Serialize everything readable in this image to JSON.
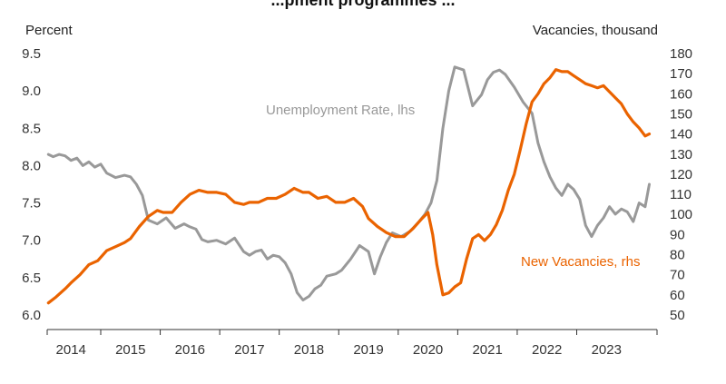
{
  "chart_data": {
    "type": "line",
    "title": "...pment programmes ...",
    "left_axis": {
      "label": "Percent",
      "ylim": [
        6.0,
        9.5
      ],
      "ticks": [
        "6.0",
        "6.5",
        "7.0",
        "7.5",
        "8.0",
        "8.5",
        "9.0",
        "9.5"
      ],
      "tick_values": [
        6.0,
        6.5,
        7.0,
        7.5,
        8.0,
        8.5,
        9.0,
        9.5
      ]
    },
    "right_axis": {
      "label": "Vacancies, thousand",
      "ylim": [
        50,
        180
      ],
      "ticks": [
        "50",
        "60",
        "70",
        "80",
        "90",
        "100",
        "110",
        "120",
        "130",
        "140",
        "150",
        "160",
        "170",
        "180"
      ],
      "tick_values": [
        50,
        60,
        70,
        80,
        90,
        100,
        110,
        120,
        130,
        140,
        150,
        160,
        170,
        180
      ]
    },
    "x_axis": {
      "xlim": [
        2013.6,
        2023.85
      ],
      "ticks": [
        "2014",
        "2015",
        "2016",
        "2017",
        "2018",
        "2019",
        "2020",
        "2021",
        "2022",
        "2023"
      ],
      "tick_centers": [
        2014.0,
        2015.0,
        2016.0,
        2017.0,
        2018.0,
        2019.0,
        2020.0,
        2021.0,
        2022.0,
        2023.0
      ],
      "year_boundaries": [
        2014.5,
        2015.5,
        2016.5,
        2017.5,
        2018.5,
        2019.5,
        2020.5,
        2021.5,
        2022.5
      ]
    },
    "series": [
      {
        "name": "Unemployment Rate, lhs",
        "axis": "left",
        "color": "#999999",
        "label_position": "upper-middle",
        "x": [
          2013.62,
          2013.7,
          2013.8,
          2013.9,
          2014.0,
          2014.1,
          2014.2,
          2014.3,
          2014.4,
          2014.5,
          2014.6,
          2014.75,
          2014.9,
          2015.0,
          2015.1,
          2015.2,
          2015.3,
          2015.45,
          2015.6,
          2015.75,
          2015.9,
          2016.0,
          2016.1,
          2016.2,
          2016.3,
          2016.45,
          2016.6,
          2016.75,
          2016.9,
          2017.0,
          2017.1,
          2017.2,
          2017.3,
          2017.4,
          2017.5,
          2017.6,
          2017.7,
          2017.8,
          2017.9,
          2018.0,
          2018.1,
          2018.2,
          2018.3,
          2018.45,
          2018.55,
          2018.7,
          2018.85,
          2019.0,
          2019.1,
          2019.2,
          2019.3,
          2019.4,
          2019.55,
          2019.7,
          2019.85,
          2019.95,
          2020.05,
          2020.15,
          2020.25,
          2020.35,
          2020.45,
          2020.6,
          2020.75,
          2020.9,
          2021.0,
          2021.1,
          2021.2,
          2021.3,
          2021.45,
          2021.6,
          2021.75,
          2021.85,
          2021.95,
          2022.05,
          2022.15,
          2022.25,
          2022.35,
          2022.45,
          2022.55,
          2022.65,
          2022.75,
          2022.85,
          2022.95,
          2023.05,
          2023.15,
          2023.25,
          2023.35,
          2023.45,
          2023.55,
          2023.65,
          2023.72
        ],
        "values": [
          8.15,
          8.12,
          8.15,
          8.13,
          8.07,
          8.1,
          8.0,
          8.05,
          7.98,
          8.02,
          7.9,
          7.84,
          7.87,
          7.85,
          7.75,
          7.6,
          7.27,
          7.22,
          7.3,
          7.16,
          7.22,
          7.18,
          7.15,
          7.01,
          6.98,
          7.0,
          6.95,
          7.03,
          6.85,
          6.8,
          6.85,
          6.87,
          6.75,
          6.8,
          6.78,
          6.7,
          6.55,
          6.3,
          6.2,
          6.25,
          6.35,
          6.4,
          6.52,
          6.55,
          6.6,
          6.75,
          6.93,
          6.85,
          6.55,
          6.78,
          6.97,
          7.1,
          7.05,
          7.12,
          7.25,
          7.35,
          7.5,
          7.8,
          8.5,
          9.0,
          9.32,
          9.28,
          8.8,
          8.95,
          9.15,
          9.25,
          9.28,
          9.22,
          9.05,
          8.85,
          8.7,
          8.3,
          8.05,
          7.85,
          7.7,
          7.6,
          7.75,
          7.68,
          7.55,
          7.2,
          7.05,
          7.2,
          7.3,
          7.45,
          7.35,
          7.42,
          7.38,
          7.25,
          7.5,
          7.45,
          7.75
        ]
      },
      {
        "name": "New Vacancies, rhs",
        "axis": "right",
        "color": "#ea6300",
        "label_position": "lower-right",
        "x": [
          2013.62,
          2013.75,
          2013.9,
          2014.0,
          2014.15,
          2014.3,
          2014.45,
          2014.6,
          2014.75,
          2014.9,
          2015.0,
          2015.15,
          2015.3,
          2015.45,
          2015.55,
          2015.7,
          2015.85,
          2016.0,
          2016.15,
          2016.3,
          2016.45,
          2016.6,
          2016.75,
          2016.9,
          2017.0,
          2017.15,
          2017.3,
          2017.45,
          2017.6,
          2017.75,
          2017.9,
          2018.0,
          2018.15,
          2018.3,
          2018.45,
          2018.6,
          2018.75,
          2018.9,
          2019.0,
          2019.15,
          2019.3,
          2019.45,
          2019.6,
          2019.75,
          2019.9,
          2020.0,
          2020.08,
          2020.15,
          2020.25,
          2020.35,
          2020.45,
          2020.55,
          2020.65,
          2020.75,
          2020.85,
          2020.95,
          2021.05,
          2021.15,
          2021.25,
          2021.35,
          2021.45,
          2021.55,
          2021.65,
          2021.75,
          2021.85,
          2021.95,
          2022.05,
          2022.15,
          2022.25,
          2022.35,
          2022.45,
          2022.55,
          2022.65,
          2022.75,
          2022.85,
          2022.95,
          2023.05,
          2023.15,
          2023.25,
          2023.35,
          2023.45,
          2023.55,
          2023.65,
          2023.72
        ],
        "values": [
          56,
          59,
          63,
          66,
          70,
          75,
          77,
          82,
          84,
          86,
          88,
          94,
          99,
          102,
          101,
          101,
          106,
          110,
          112,
          111,
          111,
          110,
          106,
          105,
          106,
          106,
          108,
          108,
          110,
          113,
          111,
          111,
          108,
          109,
          106,
          106,
          108,
          104,
          98,
          94,
          91,
          89,
          89,
          93,
          98,
          101,
          90,
          75,
          60,
          61,
          64,
          66,
          78,
          88,
          90,
          87,
          90,
          95,
          102,
          112,
          120,
          132,
          145,
          156,
          160,
          165,
          168,
          172,
          171,
          171,
          169,
          167,
          165,
          164,
          163,
          164,
          161,
          158,
          155,
          150,
          146,
          143,
          139,
          140
        ]
      }
    ]
  }
}
